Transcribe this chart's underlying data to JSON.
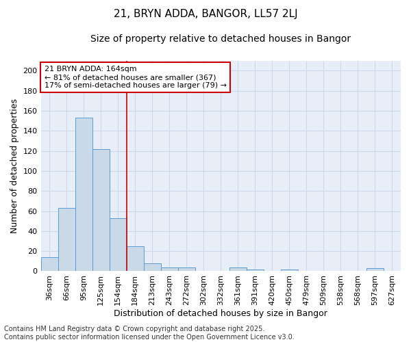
{
  "title": "21, BRYN ADDA, BANGOR, LL57 2LJ",
  "subtitle": "Size of property relative to detached houses in Bangor",
  "xlabel": "Distribution of detached houses by size in Bangor",
  "ylabel": "Number of detached properties",
  "categories": [
    "36sqm",
    "66sqm",
    "95sqm",
    "125sqm",
    "154sqm",
    "184sqm",
    "213sqm",
    "243sqm",
    "272sqm",
    "302sqm",
    "332sqm",
    "361sqm",
    "391sqm",
    "420sqm",
    "450sqm",
    "479sqm",
    "509sqm",
    "538sqm",
    "568sqm",
    "597sqm",
    "627sqm"
  ],
  "values": [
    14,
    63,
    153,
    122,
    53,
    25,
    8,
    4,
    4,
    0,
    0,
    4,
    2,
    0,
    2,
    0,
    0,
    0,
    0,
    3,
    0
  ],
  "bar_color": "#c9d9e8",
  "bar_edge_color": "#5b9bd5",
  "annotation_line1": "21 BRYN ADDA: 164sqm",
  "annotation_line2": "← 81% of detached houses are smaller (367)",
  "annotation_line3": "17% of semi-detached houses are larger (79) →",
  "annotation_box_color": "#ffffff",
  "annotation_box_edge": "#cc0000",
  "vline_x": 4.5,
  "vline_color": "#cc0000",
  "footer": "Contains HM Land Registry data © Crown copyright and database right 2025.\nContains public sector information licensed under the Open Government Licence v3.0.",
  "ylim": [
    0,
    210
  ],
  "yticks": [
    0,
    20,
    40,
    60,
    80,
    100,
    120,
    140,
    160,
    180,
    200
  ],
  "grid_color": "#cdd8ea",
  "bg_color": "#e8eef8",
  "title_fontsize": 11,
  "subtitle_fontsize": 10,
  "label_fontsize": 9,
  "tick_fontsize": 8,
  "footer_fontsize": 7,
  "annot_fontsize": 8
}
